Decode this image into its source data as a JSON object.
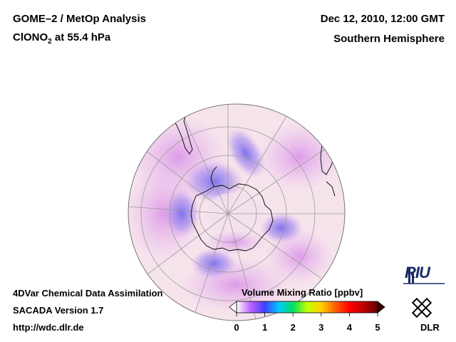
{
  "header": {
    "title": "GOME–2 / MetOp Analysis",
    "species": "ClONO",
    "species_sub": "2",
    "level": " at 55.4 hPa",
    "date": "Dec 12, 2010, 12:00 GMT",
    "region": "Southern Hemisphere"
  },
  "footer": {
    "line1": "4DVar Chemical Data Assimilation",
    "line2": "SACADA Version 1.7",
    "line3": "http://wdc.dlr.de"
  },
  "colorbar": {
    "title": "Volume Mixing Ratio [ppbv]",
    "ticks": [
      "0",
      "1",
      "2",
      "3",
      "4",
      "5"
    ],
    "min": 0,
    "max": 5,
    "colors": [
      "#ffffff",
      "#c060ff",
      "#4040ff",
      "#00c8ff",
      "#00e060",
      "#c0ff00",
      "#ffd000",
      "#ff6000",
      "#ff0000",
      "#c00000",
      "#600000"
    ]
  },
  "logos": {
    "riu": "RIU",
    "dlr": "DLR"
  },
  "colors": {
    "background_field": "#f6e4ec",
    "low_ozone_blue": "#8878e8",
    "mid_purple": "#d4a2e6",
    "coastline": "#000000",
    "gridline": "#9a9a9a"
  }
}
